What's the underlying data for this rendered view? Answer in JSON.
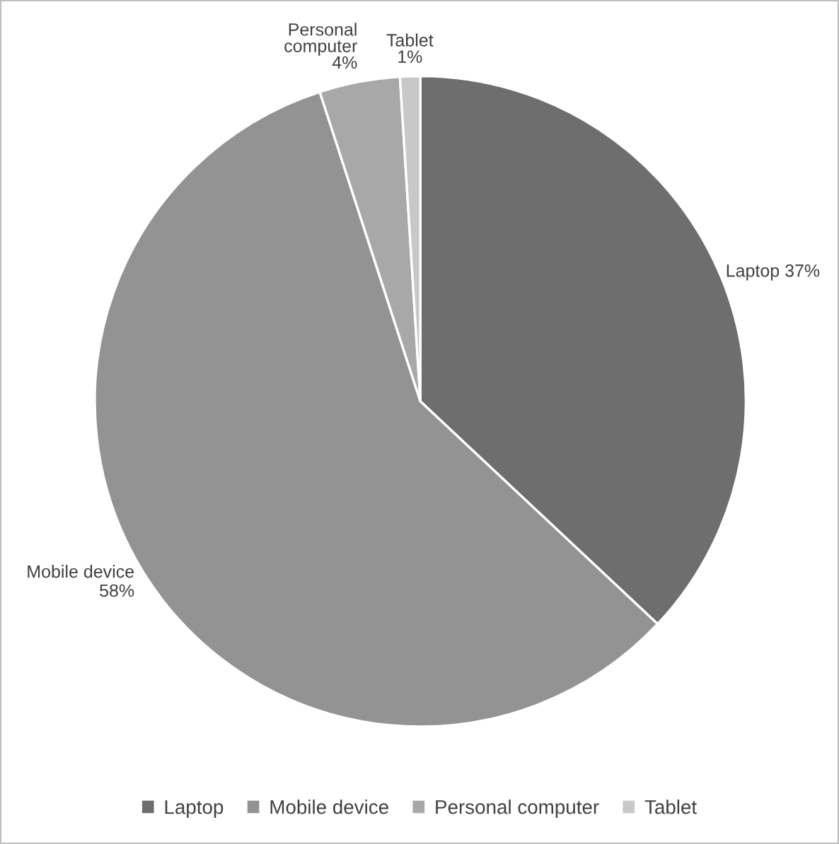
{
  "chart_data": {
    "type": "pie",
    "categories": [
      "Laptop",
      "Mobile device",
      "Personal computer",
      "Tablet"
    ],
    "values": [
      37,
      58,
      4,
      1
    ],
    "value_labels": [
      "37%",
      "58%",
      "4%",
      "1%"
    ],
    "colors": [
      "#6e6e6e",
      "#939393",
      "#a8a8a8",
      "#c8c8c8"
    ],
    "legend": "bottom"
  }
}
